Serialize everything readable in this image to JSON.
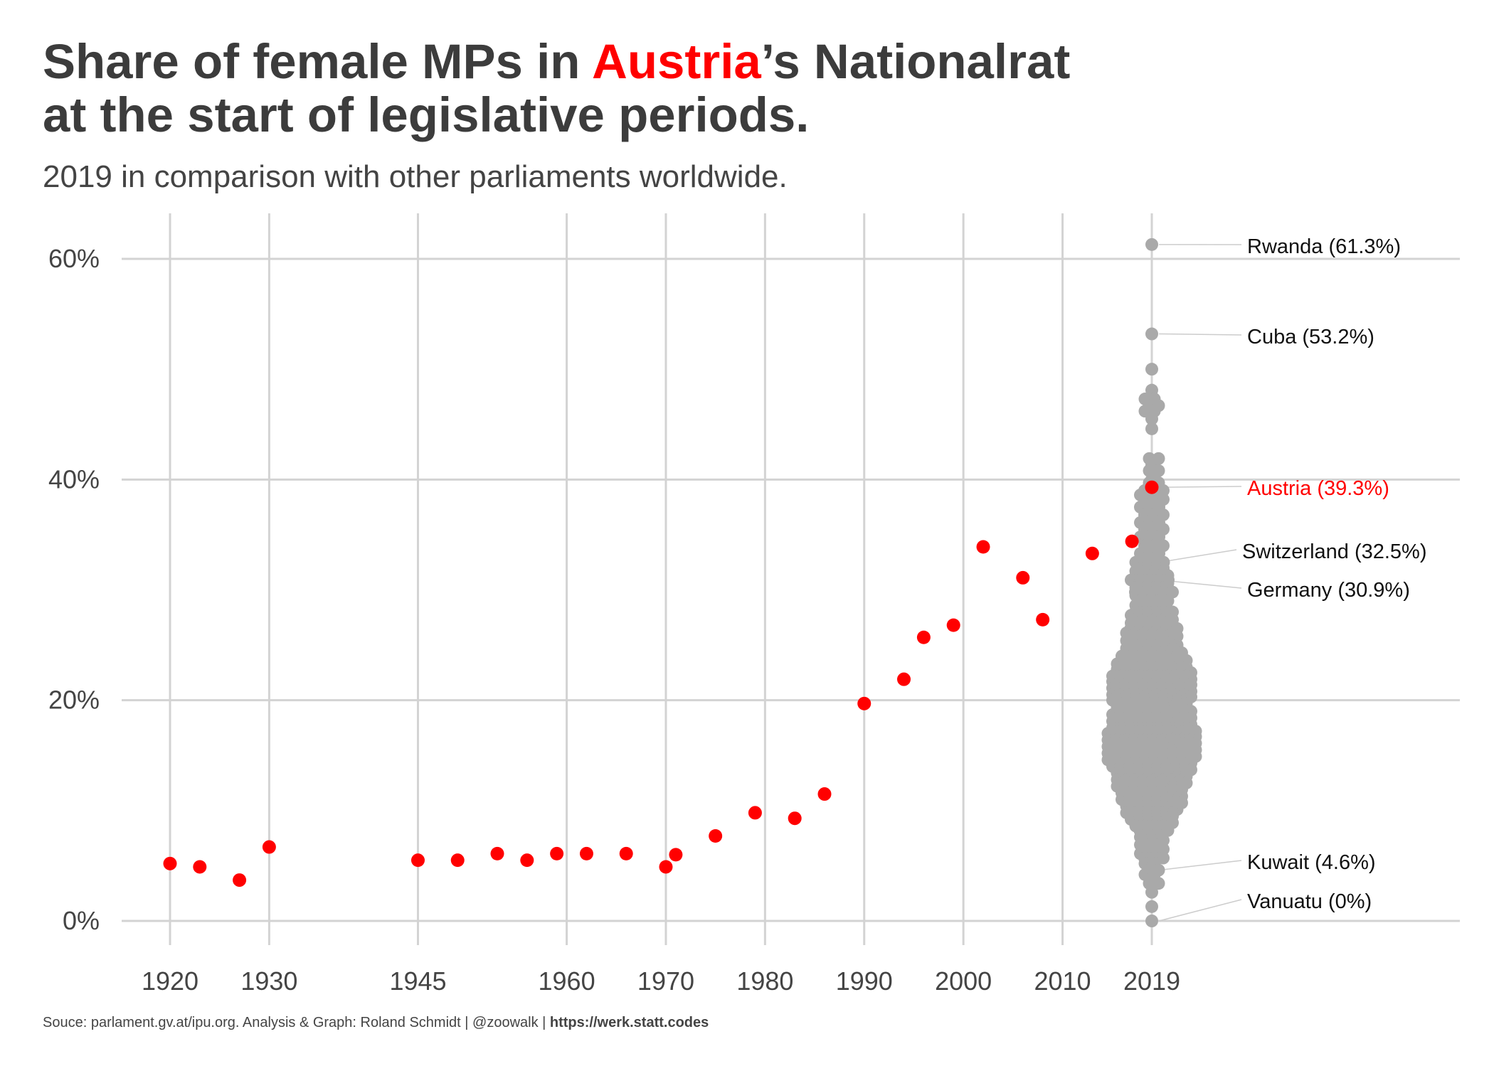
{
  "title": {
    "line1_before": "Share of female MPs in ",
    "line1_highlight": "Austria",
    "line1_after": "’s Nationalrat",
    "line2": "at the start of legislative periods."
  },
  "subtitle": "2019 in comparison with other parliaments worldwide.",
  "caption": {
    "text": "Souce: parlament.gv.at/ipu.org. Analysis & Graph: Roland Schmidt | @zoowalk | ",
    "link": "https://werk.statt.codes"
  },
  "colors": {
    "austria": "#ff0000",
    "world": "#a9a9a9",
    "grid": "#d3d3d3",
    "text": "#3c3c3c"
  },
  "chart_data": {
    "type": "scatter",
    "title": "Share of female MPs in Austria’s Nationalrat at the start of legislative periods.",
    "subtitle": "2019 in comparison with other parliaments worldwide.",
    "xlabel": "",
    "ylabel": "",
    "xlim": [
      1920,
      2019
    ],
    "ylim": [
      0,
      60
    ],
    "grid": true,
    "x_ticks": [
      1920,
      1930,
      1945,
      1960,
      1970,
      1980,
      1990,
      2000,
      2010,
      2019
    ],
    "y_ticks": [
      0,
      20,
      40,
      60
    ],
    "y_tick_labels": [
      "0%",
      "20%",
      "40%",
      "60%"
    ],
    "x_tick_labels": [
      "1920",
      "1930",
      "1945",
      "1960",
      "1970",
      "1980",
      "1990",
      "2000",
      "2010",
      "2019"
    ],
    "series": [
      {
        "name": "Austria",
        "color": "#ff0000",
        "points": [
          {
            "x": 1920,
            "y": 5.2
          },
          {
            "x": 1923,
            "y": 4.9
          },
          {
            "x": 1927,
            "y": 3.7
          },
          {
            "x": 1930,
            "y": 6.7
          },
          {
            "x": 1945,
            "y": 5.5
          },
          {
            "x": 1949,
            "y": 5.5
          },
          {
            "x": 1953,
            "y": 6.1
          },
          {
            "x": 1956,
            "y": 5.5
          },
          {
            "x": 1959,
            "y": 6.1
          },
          {
            "x": 1962,
            "y": 6.1
          },
          {
            "x": 1966,
            "y": 6.1
          },
          {
            "x": 1970,
            "y": 4.9
          },
          {
            "x": 1971,
            "y": 6.0
          },
          {
            "x": 1975,
            "y": 7.7
          },
          {
            "x": 1979,
            "y": 9.8
          },
          {
            "x": 1983,
            "y": 9.3
          },
          {
            "x": 1986,
            "y": 11.5
          },
          {
            "x": 1990,
            "y": 19.7
          },
          {
            "x": 1994,
            "y": 21.9
          },
          {
            "x": 1996,
            "y": 25.7
          },
          {
            "x": 1999,
            "y": 26.8
          },
          {
            "x": 2002,
            "y": 33.9
          },
          {
            "x": 2006,
            "y": 31.1
          },
          {
            "x": 2008,
            "y": 27.3
          },
          {
            "x": 2013,
            "y": 33.3
          },
          {
            "x": 2017,
            "y": 34.4
          },
          {
            "x": 2019,
            "y": 39.3
          }
        ]
      },
      {
        "name": "Other parliaments 2019",
        "color": "#a9a9a9",
        "x": 2019,
        "values": [
          61.3,
          53.2,
          50.0,
          48.1,
          47.3,
          46.7,
          46.2,
          45.5,
          44.6,
          41.9,
          41.3,
          40.8,
          40.0,
          39.7,
          39.3,
          39.0,
          38.6,
          38.2,
          37.5,
          36.8,
          36.1,
          35.5,
          34.8,
          34.0,
          33.3,
          32.5,
          32.5,
          32.0,
          31.7,
          31.3,
          30.9,
          30.6,
          30.2,
          29.8,
          29.5,
          29.0,
          28.6,
          28.0,
          27.7,
          27.3,
          27.0,
          26.5,
          26.1,
          25.8,
          25.4,
          25.0,
          24.7,
          24.3,
          24.0,
          23.6,
          23.3,
          23.0,
          22.8,
          22.5,
          22.2,
          21.9,
          21.7,
          21.4,
          21.1,
          20.8,
          20.5,
          20.3,
          20.0,
          19.7,
          19.4,
          19.0,
          18.7,
          18.4,
          18.1,
          17.8,
          17.5,
          17.2,
          17.0,
          16.7,
          16.4,
          16.1,
          15.8,
          15.5,
          15.2,
          14.9,
          14.6,
          14.3,
          14.0,
          13.7,
          13.4,
          13.1,
          12.8,
          12.5,
          12.2,
          11.9,
          11.6,
          11.3,
          11.0,
          10.7,
          10.4,
          10.1,
          9.8,
          9.5,
          9.2,
          8.9,
          8.6,
          8.2,
          7.6,
          7.3,
          6.9,
          6.5,
          6.1,
          5.7,
          5.2,
          4.6,
          4.2,
          3.4,
          2.6,
          1.3,
          0.0
        ],
        "counts": [
          1,
          1,
          1,
          1,
          2,
          2,
          2,
          1,
          1,
          2,
          1,
          2,
          1,
          2,
          1,
          3,
          3,
          3,
          3,
          3,
          3,
          3,
          3,
          3,
          3,
          3,
          4,
          3,
          4,
          4,
          5,
          4,
          4,
          5,
          4,
          4,
          4,
          5,
          5,
          5,
          5,
          6,
          6,
          6,
          6,
          6,
          6,
          7,
          7,
          8,
          8,
          8,
          8,
          9,
          9,
          9,
          9,
          9,
          9,
          9,
          9,
          9,
          9,
          8,
          8,
          9,
          9,
          9,
          9,
          9,
          9,
          10,
          10,
          10,
          10,
          10,
          10,
          10,
          10,
          10,
          10,
          9,
          9,
          9,
          8,
          8,
          8,
          8,
          8,
          7,
          7,
          7,
          7,
          7,
          6,
          6,
          6,
          5,
          5,
          5,
          4,
          4,
          3,
          3,
          3,
          3,
          3,
          3,
          2,
          2,
          2,
          2,
          1,
          1,
          1
        ]
      }
    ],
    "annotations": [
      {
        "label": "Rwanda (61.3%)",
        "y": 61.3,
        "highlight": false
      },
      {
        "label": "Cuba (53.2%)",
        "y": 53.2,
        "highlight": false
      },
      {
        "label": "Austria (39.3%)",
        "y": 39.3,
        "highlight": true
      },
      {
        "label": "Switzerland (32.5%)",
        "y": 32.5,
        "highlight": false
      },
      {
        "label": "Germany (30.9%)",
        "y": 30.9,
        "highlight": false
      },
      {
        "label": "Kuwait (4.6%)",
        "y": 4.6,
        "highlight": false
      },
      {
        "label": "Vanuatu (0%)",
        "y": 0.0,
        "highlight": false
      }
    ]
  }
}
